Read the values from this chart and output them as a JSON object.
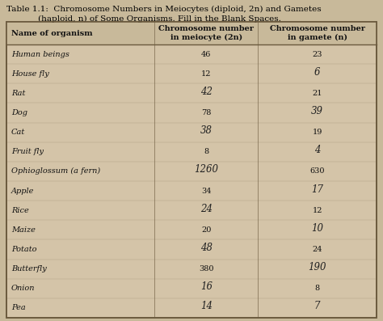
{
  "title_line1": "Table 1.1:  Chromosome Numbers in Meiocytes (diploid, 2n) and Gametes",
  "title_line2": "            (haploid, n) of Some Organisms. Fill in the Blank Spaces.",
  "col_headers": [
    "Name of organism",
    "Chromosome number\nin meiocyte (2n)",
    "Chromosome number\nin gamete (n)"
  ],
  "rows": [
    [
      "Human beings",
      "46",
      "23",
      false,
      false
    ],
    [
      "House fly",
      "12",
      "6",
      false,
      true
    ],
    [
      "Rat",
      "42",
      "21",
      true,
      false
    ],
    [
      "Dog",
      "78",
      "39",
      false,
      true
    ],
    [
      "Cat",
      "38",
      "19",
      true,
      false
    ],
    [
      "Fruit fly",
      "8",
      "4",
      false,
      true
    ],
    [
      "Ophioglossum (a fern)",
      "1260",
      "630",
      true,
      false
    ],
    [
      "Apple",
      "34",
      "17",
      false,
      true
    ],
    [
      "Rice",
      "24",
      "12",
      true,
      false
    ],
    [
      "Maize",
      "20",
      "10",
      false,
      true
    ],
    [
      "Potato",
      "48",
      "24",
      true,
      false
    ],
    [
      "Butterfly",
      "380",
      "190",
      false,
      true
    ],
    [
      "Onion",
      "16",
      "8",
      true,
      false
    ],
    [
      "Pea",
      "14",
      "7",
      true,
      true
    ]
  ],
  "bg_color": "#c8b99a",
  "table_bg": "#d4c4a8",
  "header_bg": "#c8b99a",
  "border_color": "#6b5a3e",
  "text_color": "#111111",
  "handwritten_color": "#222222",
  "title_color": "#000000",
  "col_splits": [
    0.0,
    0.4,
    0.68,
    1.0
  ],
  "title_fontsize": 7.5,
  "header_fontsize": 7.0,
  "body_fontsize": 7.0,
  "hw_fontsize": 8.5
}
